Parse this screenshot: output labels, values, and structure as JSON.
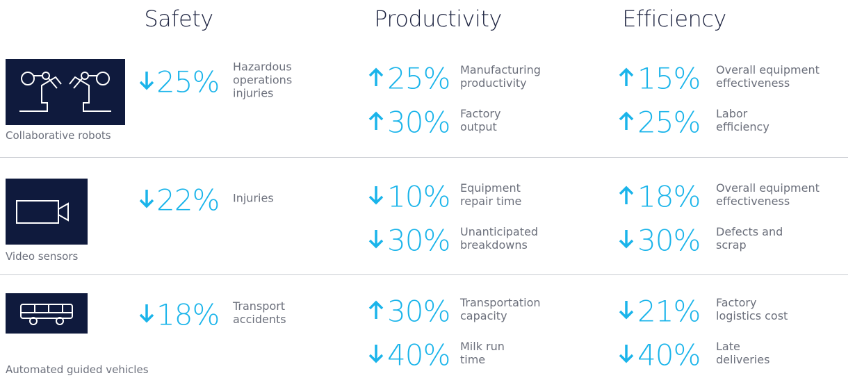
{
  "columns": [
    "Safety",
    "Productivity",
    "Efficiency"
  ],
  "rows": [
    {
      "label": "Collaborative robots",
      "icon": "robots",
      "cells": [
        [
          {
            "direction": "down",
            "value": "25%",
            "description": [
              "Hazardous",
              "operations",
              "injuries"
            ]
          }
        ],
        [
          {
            "direction": "up",
            "value": "25%",
            "description": [
              "Manufacturing",
              "productivity"
            ]
          },
          {
            "direction": "up",
            "value": "30%",
            "description": [
              "Factory",
              "output"
            ]
          }
        ],
        [
          {
            "direction": "up",
            "value": "15%",
            "description": [
              "Overall equipment",
              "effectiveness"
            ]
          },
          {
            "direction": "up",
            "value": "25%",
            "description": [
              "Labor",
              "efficiency"
            ]
          }
        ]
      ]
    },
    {
      "label": "Video sensors",
      "icon": "camera",
      "cells": [
        [
          {
            "direction": "down",
            "value": "22%",
            "description": [
              "Injuries"
            ]
          }
        ],
        [
          {
            "direction": "down",
            "value": "10%",
            "description": [
              "Equipment",
              "repair time"
            ]
          },
          {
            "direction": "down",
            "value": "30%",
            "description": [
              "Unanticipated",
              "breakdowns"
            ]
          }
        ],
        [
          {
            "direction": "up",
            "value": "18%",
            "description": [
              "Overall equipment",
              "effectiveness"
            ]
          },
          {
            "direction": "down",
            "value": "30%",
            "description": [
              "Defects and",
              "scrap"
            ]
          }
        ]
      ]
    },
    {
      "label": "Automated guided vehicles",
      "icon": "vehicle",
      "cells": [
        [
          {
            "direction": "down",
            "value": "18%",
            "description": [
              "Transport",
              "accidents"
            ]
          }
        ],
        [
          {
            "direction": "up",
            "value": "30%",
            "description": [
              "Transportation",
              "capacity"
            ]
          },
          {
            "direction": "down",
            "value": "40%",
            "description": [
              "Milk run",
              "time"
            ]
          }
        ],
        [
          {
            "direction": "down",
            "value": "21%",
            "description": [
              "Factory",
              "logistics cost"
            ]
          },
          {
            "direction": "down",
            "value": "40%",
            "description": [
              "Late",
              "deliveries"
            ]
          }
        ]
      ]
    }
  ]
}
